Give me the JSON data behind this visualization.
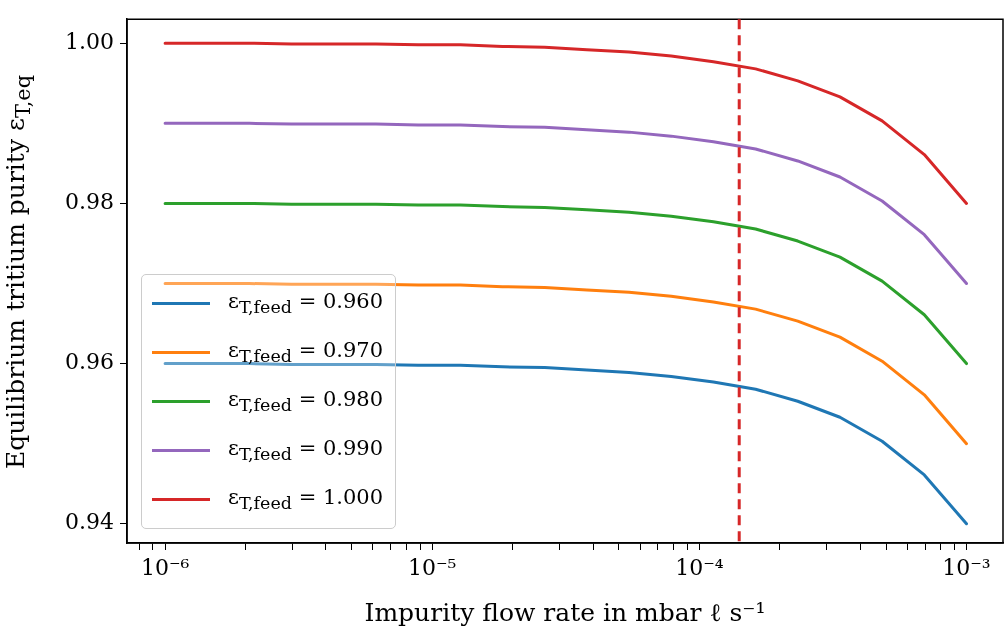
{
  "chart_data": {
    "type": "line",
    "xlabel": "Impurity flow rate in mbar ℓ s⁻¹",
    "ylabel": "Equilibrium tritium purity ε$_{T,eq}$",
    "log": "x",
    "legend": "bottom left",
    "marker": "none",
    "line_style": "solid",
    "x": [
      1e-06,
      1.438e-06,
      2.069e-06,
      2.976e-06,
      4.281e-06,
      6.158e-06,
      8.859e-06,
      1.274e-05,
      1.833e-05,
      2.637e-05,
      3.793e-05,
      5.456e-05,
      7.848e-05,
      0.0001129,
      0.0001624,
      0.0002336,
      0.000336,
      0.0004833,
      0.0006952,
      0.001
    ],
    "xlim": [
      7.2e-07,
      0.00137
    ],
    "xticks": [
      {
        "value": 8e-07,
        "label": null
      },
      {
        "value": 9e-07,
        "label": null
      },
      {
        "value": 1e-06,
        "label": "10⁻⁶"
      },
      {
        "value": 2e-06,
        "label": null
      },
      {
        "value": 3e-06,
        "label": null
      },
      {
        "value": 4e-06,
        "label": null
      },
      {
        "value": 5e-06,
        "label": null
      },
      {
        "value": 6e-06,
        "label": null
      },
      {
        "value": 7e-06,
        "label": null
      },
      {
        "value": 8e-06,
        "label": null
      },
      {
        "value": 9e-06,
        "label": null
      },
      {
        "value": 1e-05,
        "label": "10⁻⁵"
      },
      {
        "value": 2e-05,
        "label": null
      },
      {
        "value": 3e-05,
        "label": null
      },
      {
        "value": 4e-05,
        "label": null
      },
      {
        "value": 5e-05,
        "label": null
      },
      {
        "value": 6e-05,
        "label": null
      },
      {
        "value": 7e-05,
        "label": null
      },
      {
        "value": 8e-05,
        "label": null
      },
      {
        "value": 9e-05,
        "label": null
      },
      {
        "value": 0.0001,
        "label": "10⁻⁴"
      },
      {
        "value": 0.0002,
        "label": null
      },
      {
        "value": 0.0003,
        "label": null
      },
      {
        "value": 0.0004,
        "label": null
      },
      {
        "value": 0.0005,
        "label": null
      },
      {
        "value": 0.0006,
        "label": null
      },
      {
        "value": 0.0007,
        "label": null
      },
      {
        "value": 0.0008,
        "label": null
      },
      {
        "value": 0.0009,
        "label": null
      },
      {
        "value": 0.001,
        "label": "10⁻³"
      }
    ],
    "ylim": [
      0.9376,
      1.003
    ],
    "yticks": [
      {
        "value": 0.94,
        "label": "0.94"
      },
      {
        "value": 0.96,
        "label": "0.96"
      },
      {
        "value": 0.98,
        "label": "0.98"
      },
      {
        "value": 1,
        "label": "1.00"
      }
    ],
    "series": [
      {
        "name": "ε$_{T,feed}$ = 0.960",
        "color": "#1f77b4",
        "values": [
          0.96,
          0.96,
          0.96,
          0.9599,
          0.9599,
          0.9599,
          0.9598,
          0.9598,
          0.9596,
          0.9595,
          0.9592,
          0.9589,
          0.9584,
          0.9577,
          0.9568,
          0.9553,
          0.9533,
          0.9503,
          0.9461,
          0.94
        ]
      },
      {
        "name": "ε$_{T,feed}$ = 0.970",
        "color": "#ff7f0e",
        "values": [
          0.97,
          0.97,
          0.97,
          0.9699,
          0.9699,
          0.9699,
          0.9698,
          0.9698,
          0.9696,
          0.9695,
          0.9692,
          0.9689,
          0.9684,
          0.9677,
          0.9668,
          0.9653,
          0.9633,
          0.9603,
          0.9561,
          0.95
        ]
      },
      {
        "name": "ε$_{T,feed}$ = 0.980",
        "color": "#2ca02c",
        "values": [
          0.98,
          0.98,
          0.98,
          0.9799,
          0.9799,
          0.9799,
          0.9798,
          0.9798,
          0.9796,
          0.9795,
          0.9792,
          0.9789,
          0.9784,
          0.9777,
          0.9768,
          0.9753,
          0.9733,
          0.9703,
          0.9661,
          0.96
        ]
      },
      {
        "name": "ε$_{T,feed}$ = 0.990",
        "color": "#9467bd",
        "values": [
          0.99,
          0.99,
          0.99,
          0.9899,
          0.9899,
          0.9899,
          0.9898,
          0.9898,
          0.9896,
          0.9895,
          0.9892,
          0.9889,
          0.9884,
          0.9877,
          0.9868,
          0.9853,
          0.9833,
          0.9803,
          0.9761,
          0.97
        ]
      },
      {
        "name": "ε$_{T,feed}$ = 1.000",
        "color": "#d62728",
        "values": [
          1,
          1,
          1,
          0.9999,
          0.9999,
          0.9999,
          0.9998,
          0.9998,
          0.9996,
          0.9995,
          0.9992,
          0.9989,
          0.9984,
          0.9977,
          0.9968,
          0.9953,
          0.9933,
          0.9903,
          0.9861,
          0.98
        ]
      }
    ],
    "ref_lines": [
      {
        "axis": "x",
        "value": 0.000141,
        "color": "#d62728",
        "line_style": "dashed"
      }
    ]
  }
}
